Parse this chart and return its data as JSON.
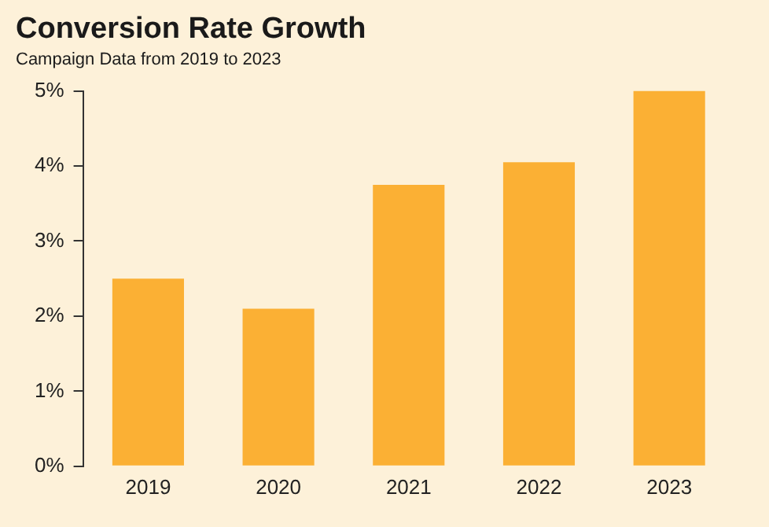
{
  "chart_data": {
    "type": "bar",
    "title": "Conversion Rate Growth",
    "subtitle": "Campaign Data from 2019 to 2023",
    "categories": [
      "2019",
      "2020",
      "2021",
      "2022",
      "2023"
    ],
    "values": [
      2.5,
      2.1,
      3.75,
      4.05,
      5
    ],
    "color": "#fbb034",
    "ylim": [
      0,
      5
    ],
    "yticks": [
      {
        "value": 0,
        "label": "0%"
      },
      {
        "value": 1,
        "label": "1%"
      },
      {
        "value": 2,
        "label": "2%"
      },
      {
        "value": 3,
        "label": "3%"
      },
      {
        "value": 4,
        "label": "4%"
      },
      {
        "value": 5,
        "label": "5%"
      }
    ],
    "grid": false,
    "legend": false
  }
}
